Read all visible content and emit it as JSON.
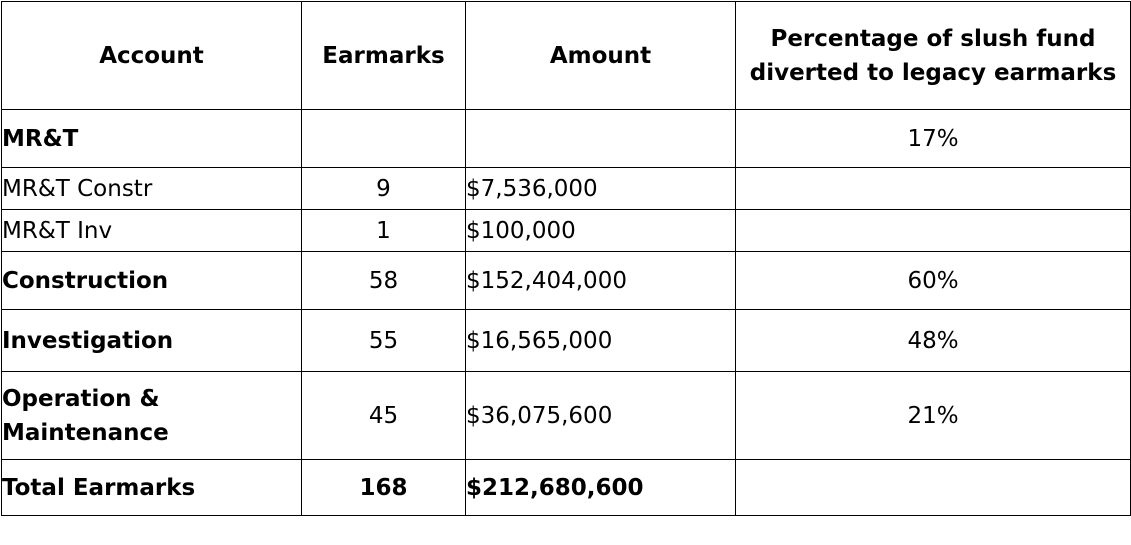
{
  "table": {
    "headers": {
      "account": "Account",
      "earmarks": "Earmarks",
      "amount": "Amount",
      "percentage": "Percentage of slush fund diverted to legacy earmarks"
    },
    "rows": [
      {
        "account": "MR&T",
        "earmarks": "",
        "amount": "",
        "percentage": "17%"
      },
      {
        "account": "MR&T Constr",
        "earmarks": "9",
        "amount": "$7,536,000",
        "percentage": ""
      },
      {
        "account": "MR&T Inv",
        "earmarks": "1",
        "amount": "$100,000",
        "percentage": ""
      },
      {
        "account": "Construction",
        "earmarks": "58",
        "amount": "$152,404,000",
        "percentage": "60%"
      },
      {
        "account": "Investigation",
        "earmarks": "55",
        "amount": "$16,565,000",
        "percentage": "48%"
      },
      {
        "account": "Operation & Maintenance",
        "earmarks": "45",
        "amount": "$36,075,600",
        "percentage": "21%"
      }
    ],
    "total": {
      "account": "Total Earmarks",
      "earmarks": "168",
      "amount": "$212,680,600",
      "percentage": ""
    }
  }
}
